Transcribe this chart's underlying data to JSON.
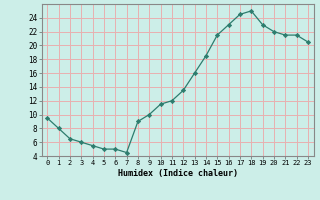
{
  "x": [
    0,
    1,
    2,
    3,
    4,
    5,
    6,
    7,
    8,
    9,
    10,
    11,
    12,
    13,
    14,
    15,
    16,
    17,
    18,
    19,
    20,
    21,
    22,
    23
  ],
  "y": [
    9.5,
    8.0,
    6.5,
    6.0,
    5.5,
    5.0,
    5.0,
    4.5,
    9.0,
    10.0,
    11.5,
    12.0,
    13.5,
    16.0,
    18.5,
    21.5,
    23.0,
    24.5,
    25.0,
    23.0,
    22.0,
    21.5,
    21.5,
    20.5
  ],
  "xlabel": "Humidex (Indice chaleur)",
  "line_color": "#2d7d6e",
  "marker": "D",
  "marker_size": 2.2,
  "bg_color": "#cceee8",
  "grid_color": "#e8b0b0",
  "ylim": [
    4,
    26
  ],
  "xlim": [
    -0.5,
    23.5
  ],
  "yticks": [
    4,
    6,
    8,
    10,
    12,
    14,
    16,
    18,
    20,
    22,
    24
  ],
  "xticks": [
    0,
    1,
    2,
    3,
    4,
    5,
    6,
    7,
    8,
    9,
    10,
    11,
    12,
    13,
    14,
    15,
    16,
    17,
    18,
    19,
    20,
    21,
    22,
    23
  ],
  "xtick_labels": [
    "0",
    "1",
    "2",
    "3",
    "4",
    "5",
    "6",
    "7",
    "8",
    "9",
    "10",
    "11",
    "12",
    "13",
    "14",
    "15",
    "16",
    "17",
    "18",
    "19",
    "20",
    "21",
    "22",
    "23"
  ]
}
